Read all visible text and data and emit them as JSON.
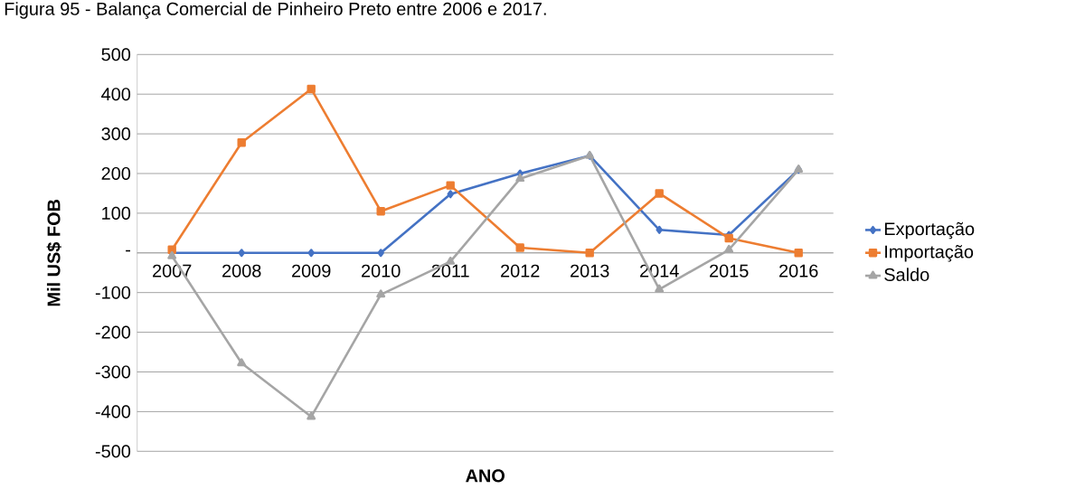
{
  "chart_data": {
    "type": "line",
    "title": "Figura 95 - Balança Comercial de Pinheiro Preto entre 2006 e 2017.",
    "xlabel": "ANO",
    "ylabel": "Mil US$ FOB",
    "categories": [
      "2007",
      "2008",
      "2009",
      "2010",
      "2011",
      "2012",
      "2013",
      "2014",
      "2015",
      "2016"
    ],
    "series": [
      {
        "name": "Exportação",
        "color": "#4472c4",
        "marker": "diamond",
        "values": [
          0,
          0,
          0,
          0,
          148,
          200,
          245,
          58,
          45,
          210
        ]
      },
      {
        "name": "Importação",
        "color": "#ed7d31",
        "marker": "square",
        "values": [
          8,
          278,
          413,
          105,
          170,
          13,
          0,
          150,
          37,
          0
        ]
      },
      {
        "name": "Saldo",
        "color": "#a5a5a5",
        "marker": "triangle",
        "values": [
          -8,
          -278,
          -413,
          -105,
          -22,
          187,
          245,
          -92,
          8,
          210
        ]
      }
    ],
    "ylim": [
      -500,
      500
    ],
    "yticks": [
      -500,
      -400,
      -300,
      -200,
      -100,
      {
        "value": 0,
        "label": "-"
      },
      100,
      200,
      300,
      400,
      500
    ],
    "grid": "y",
    "legend": "right"
  }
}
